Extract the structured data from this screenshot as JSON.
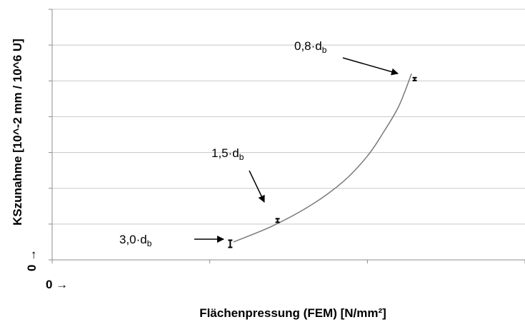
{
  "chart_data": {
    "type": "scatter",
    "title": "",
    "xlabel": "Flächenpressung (FEM) [N/mm²]",
    "ylabel": "KSzunahme [10^-2 mm / 10^6 U]",
    "x_origin_label": "0 →",
    "y_origin_label": "0 →",
    "xlim": [
      0,
      3
    ],
    "ylim": [
      0,
      7
    ],
    "grid": "horizontal",
    "points": [
      {
        "x": 1.13,
        "y": 0.45,
        "err": 0.1,
        "label_main": "3,0·d",
        "label_sub": "b"
      },
      {
        "x": 1.43,
        "y": 1.1,
        "err": 0.05,
        "label_main": "1,5·d",
        "label_sub": "b"
      },
      {
        "x": 2.3,
        "y": 5.05,
        "err": 0.04,
        "label_main": "0,8·d",
        "label_sub": "b"
      }
    ],
    "trend_curve": [
      [
        1.15,
        0.5
      ],
      [
        1.4,
        0.95
      ],
      [
        1.65,
        1.55
      ],
      [
        1.85,
        2.2
      ],
      [
        2.0,
        2.9
      ],
      [
        2.1,
        3.55
      ],
      [
        2.2,
        4.3
      ],
      [
        2.28,
        5.2
      ]
    ],
    "colors": {
      "grid": "#c8c8c8",
      "axis": "#8c8c8c",
      "curve": "#7a7a7a",
      "marker": "#000000"
    }
  }
}
